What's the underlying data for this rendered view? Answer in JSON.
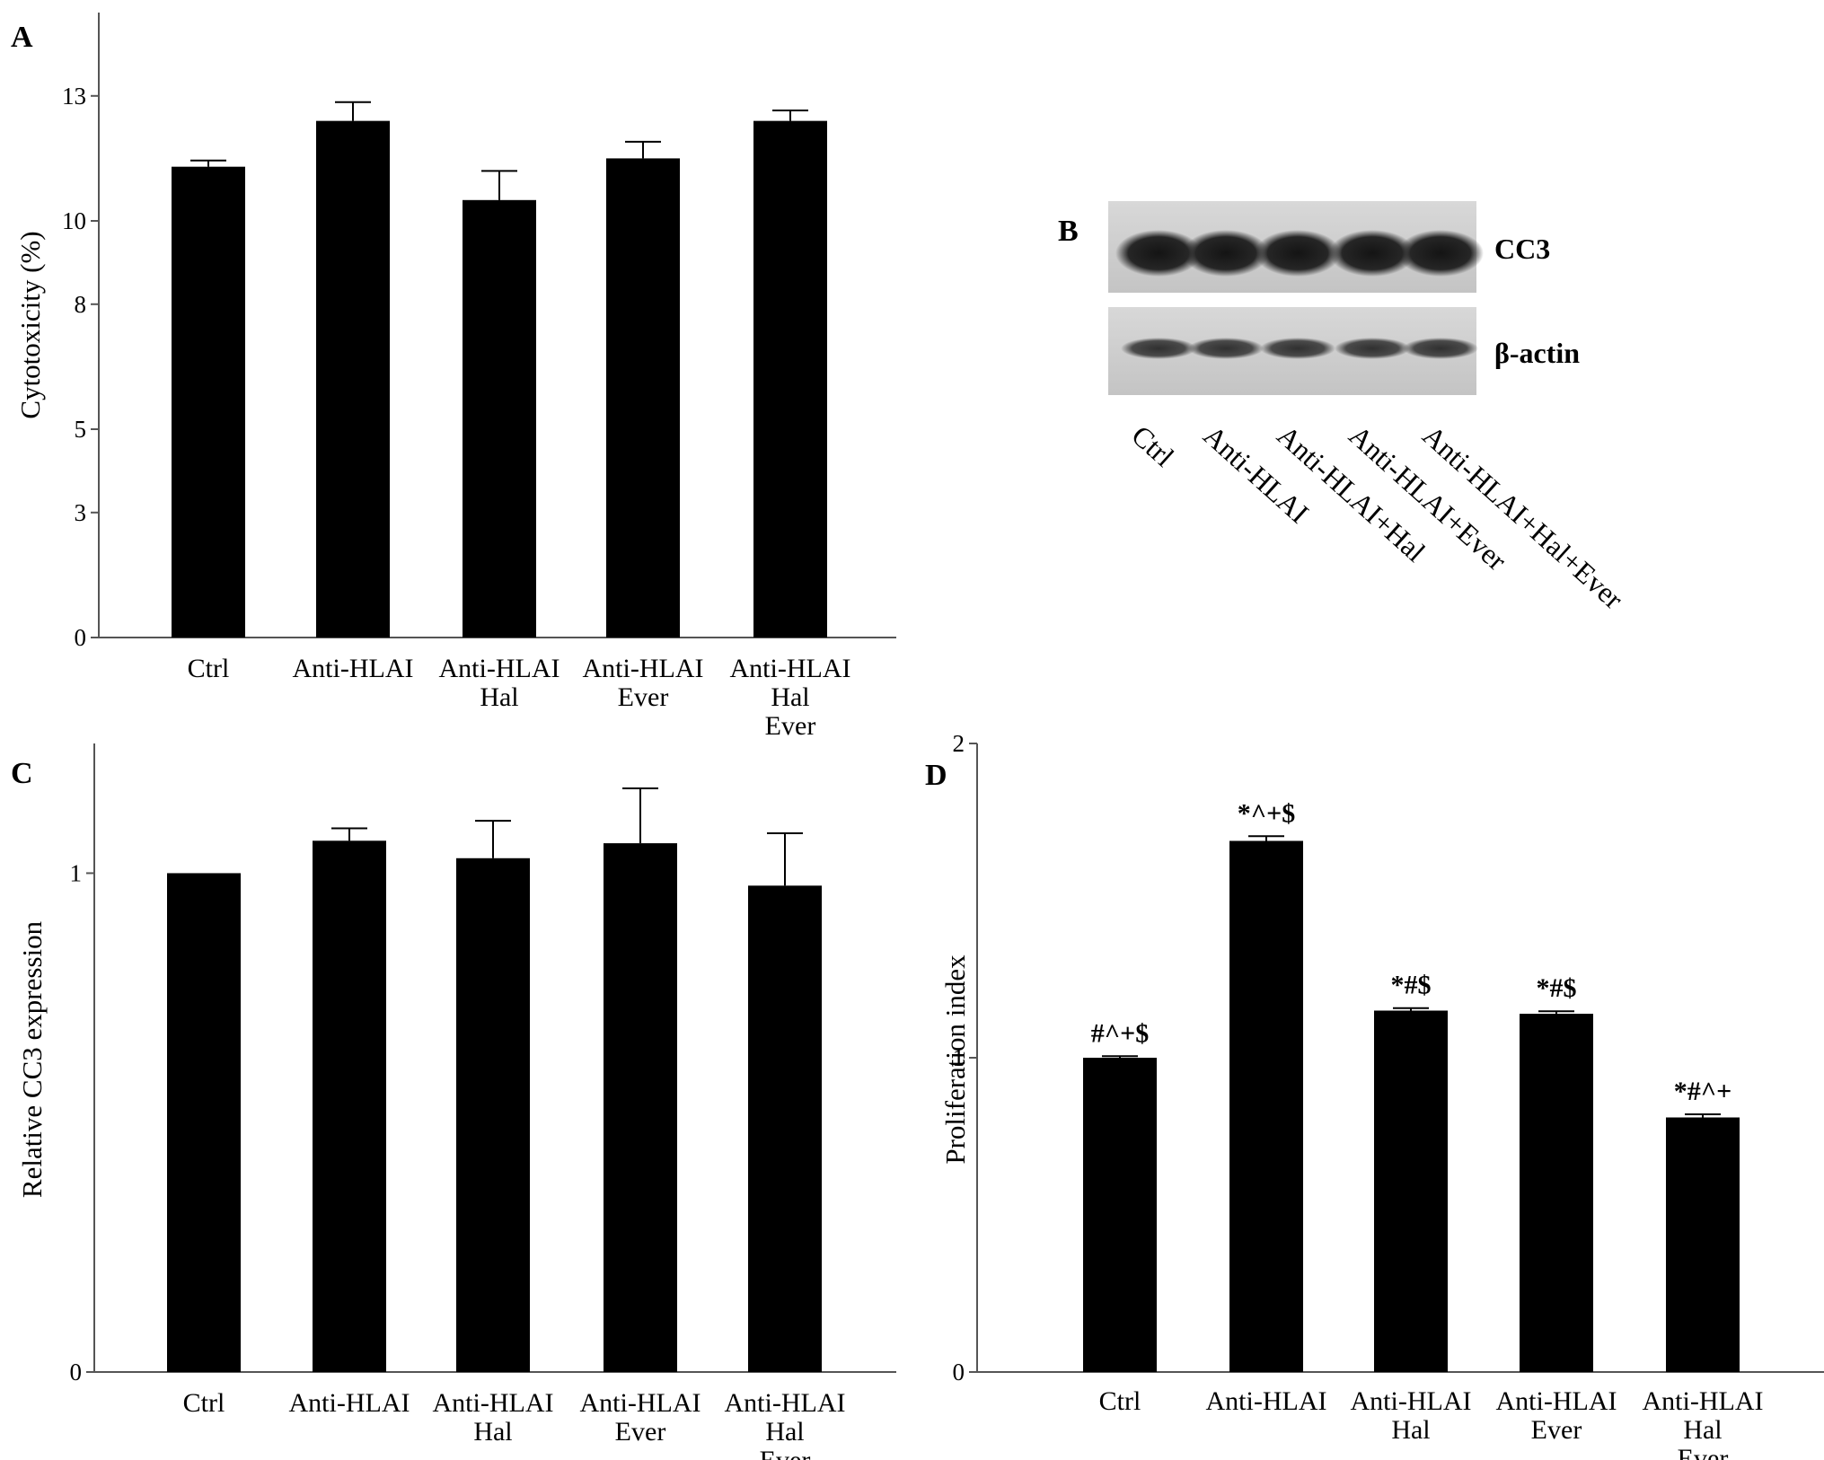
{
  "chart_data": [
    {
      "panel": "A",
      "type": "bar",
      "ylabel": "Cytotoxicity (%)",
      "ylim": [
        0,
        15
      ],
      "yticks": [
        0,
        3,
        5,
        8,
        10,
        13
      ],
      "categories": [
        [
          "Ctrl"
        ],
        [
          "Anti-HLAI"
        ],
        [
          "Anti-HLAI",
          "Hal"
        ],
        [
          "Anti-HLAI",
          "Ever"
        ],
        [
          "Anti-HLAI",
          "Hal",
          "Ever"
        ]
      ],
      "values": [
        11.3,
        12.4,
        10.5,
        11.5,
        12.4
      ],
      "errors": [
        0.15,
        0.45,
        0.7,
        0.4,
        0.25
      ]
    },
    {
      "panel": "B",
      "type": "blot",
      "bands": [
        "CC3",
        "β-actin"
      ],
      "lanes": [
        "Ctrl",
        "Anti-HLAI",
        "Anti-HLAI+Hal",
        "Anti-HLAI+Ever",
        "Anti-HLAI+Hal+Ever"
      ]
    },
    {
      "panel": "C",
      "type": "bar",
      "ylabel": "Relative CC3 expression",
      "ylim": [
        0,
        1.26
      ],
      "yticks": [
        0,
        1
      ],
      "categories": [
        [
          "Ctrl"
        ],
        [
          "Anti-HLAI"
        ],
        [
          "Anti-HLAI",
          "Hal"
        ],
        [
          "Anti-HLAI",
          "Ever"
        ],
        [
          "Anti-HLAI",
          "Hal",
          "Ever"
        ]
      ],
      "values": [
        1.0,
        1.065,
        1.03,
        1.06,
        0.975
      ],
      "errors": [
        0,
        0.025,
        0.075,
        0.11,
        0.105
      ]
    },
    {
      "panel": "D",
      "type": "bar",
      "ylabel": "Proliferation index",
      "ylim": [
        0,
        2
      ],
      "yticks": [
        0,
        1,
        2
      ],
      "categories": [
        [
          "Ctrl"
        ],
        [
          "Anti-HLAI"
        ],
        [
          "Anti-HLAI",
          "Hal"
        ],
        [
          "Anti-HLAI",
          "Ever"
        ],
        [
          "Anti-HLAI",
          "Hal",
          "Ever"
        ]
      ],
      "values": [
        1.0,
        1.69,
        1.15,
        1.14,
        0.81
      ],
      "errors": [
        0.005,
        0.015,
        0.008,
        0.008,
        0.01
      ],
      "annotations": [
        "#^+$",
        "*^+$",
        "*#$",
        "*#$",
        "*#^+"
      ]
    }
  ]
}
